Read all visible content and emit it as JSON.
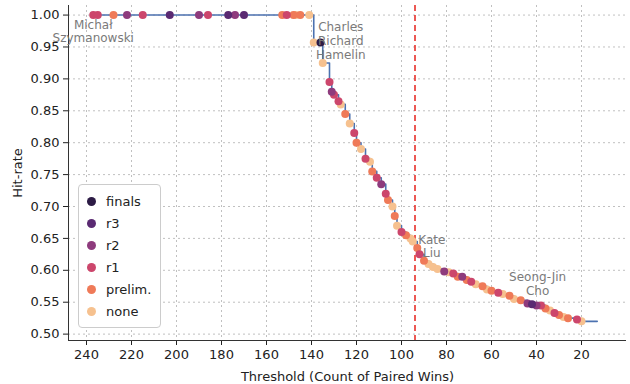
{
  "chart_data": {
    "type": "scatter",
    "x_label": "Threshold (Count of Paired Wins)",
    "y_label": "Hit-rate",
    "xlim": [
      248,
      0
    ],
    "xticks": [
      240,
      220,
      200,
      180,
      160,
      140,
      120,
      100,
      80,
      60,
      40,
      20
    ],
    "ylim": [
      0.49,
      1.015
    ],
    "yticks": [
      {
        "value": 0.5,
        "label": "0.50"
      },
      {
        "value": 0.55,
        "label": "0.55"
      },
      {
        "value": 0.6,
        "label": "0.60"
      },
      {
        "value": 0.65,
        "label": "0.65"
      },
      {
        "value": 0.7,
        "label": "0.70"
      },
      {
        "value": 0.75,
        "label": "0.75"
      },
      {
        "value": 0.8,
        "label": "0.80"
      },
      {
        "value": 0.85,
        "label": "0.85"
      },
      {
        "value": 0.9,
        "label": "0.90"
      },
      {
        "value": 0.95,
        "label": "0.95"
      },
      {
        "value": 1,
        "label": "1.00"
      }
    ],
    "grid": true,
    "legend": "lower left",
    "series": [
      {
        "name": "finals",
        "color": "#2c1b45",
        "marker": "circle",
        "x": [
          136
        ],
        "values": [
          0.957
        ]
      },
      {
        "name": "r3",
        "color": "#5a2a72",
        "marker": "circle",
        "x": [
          203,
          177,
          170,
          42
        ],
        "values": [
          1,
          1,
          1,
          0.547
        ]
      },
      {
        "name": "r2",
        "color": "#8e3b7d",
        "marker": "circle",
        "x": [
          222,
          190,
          174,
          131,
          109,
          81,
          73,
          44,
          40
        ],
        "values": [
          1,
          1,
          1,
          0.88,
          0.735,
          0.598,
          0.59,
          0.548,
          0.545
        ]
      },
      {
        "name": "r1",
        "color": "#cc466c",
        "marker": "circle",
        "x": [
          237,
          235,
          215,
          186,
          151,
          132,
          130,
          128,
          121,
          116,
          111,
          107,
          100,
          92,
          77,
          69,
          57,
          38,
          32,
          22
        ],
        "values": [
          1,
          1,
          1,
          1,
          1,
          0.895,
          0.875,
          0.865,
          0.815,
          0.775,
          0.745,
          0.72,
          0.66,
          0.625,
          0.595,
          0.582,
          0.565,
          0.545,
          0.533,
          0.523
        ]
      },
      {
        "name": "prelim.",
        "color": "#ef7a58",
        "marker": "circle",
        "x": [
          228,
          153,
          148,
          145,
          125,
          120,
          113,
          106,
          103,
          98,
          93,
          90,
          75,
          71,
          64,
          60,
          52,
          47,
          36,
          30,
          26
        ],
        "values": [
          1,
          1,
          1,
          1,
          0.845,
          0.8,
          0.755,
          0.71,
          0.685,
          0.655,
          0.635,
          0.615,
          0.59,
          0.585,
          0.575,
          0.568,
          0.56,
          0.553,
          0.54,
          0.53,
          0.525
        ]
      },
      {
        "name": "none",
        "color": "#f6c18f",
        "marker": "circle",
        "x": [
          147,
          141,
          139,
          135,
          127,
          123,
          118,
          114,
          104,
          102,
          96,
          95,
          88,
          86,
          84,
          79,
          67,
          62,
          55,
          50,
          34,
          28,
          20
        ],
        "values": [
          1,
          1,
          0.957,
          0.925,
          0.86,
          0.83,
          0.79,
          0.77,
          0.7,
          0.67,
          0.65,
          0.645,
          0.61,
          0.605,
          0.602,
          0.597,
          0.578,
          0.57,
          0.563,
          0.555,
          0.537,
          0.527,
          0.52
        ]
      }
    ],
    "line": {
      "type": "line",
      "color": "#4c72b0",
      "line_style": "step",
      "x": [
        237,
        139,
        136,
        135,
        132,
        131,
        130,
        128,
        127,
        125,
        123,
        121,
        120,
        118,
        116,
        114,
        113,
        111,
        109,
        107,
        106,
        104,
        103,
        102,
        100,
        98,
        96,
        95,
        93,
        92,
        90,
        88,
        86,
        84,
        81,
        79,
        77,
        75,
        73,
        71,
        69,
        67,
        64,
        62,
        60,
        57,
        55,
        52,
        50,
        47,
        44,
        42,
        40,
        38,
        36,
        34,
        32,
        30,
        28,
        26,
        22,
        20,
        13
      ],
      "values": [
        1,
        0.957,
        0.957,
        0.925,
        0.895,
        0.88,
        0.875,
        0.865,
        0.86,
        0.845,
        0.83,
        0.815,
        0.8,
        0.79,
        0.775,
        0.77,
        0.755,
        0.745,
        0.735,
        0.72,
        0.71,
        0.7,
        0.685,
        0.67,
        0.66,
        0.655,
        0.65,
        0.645,
        0.635,
        0.625,
        0.615,
        0.61,
        0.605,
        0.602,
        0.598,
        0.597,
        0.595,
        0.59,
        0.59,
        0.585,
        0.582,
        0.578,
        0.575,
        0.57,
        0.568,
        0.565,
        0.563,
        0.56,
        0.555,
        0.553,
        0.548,
        0.547,
        0.545,
        0.545,
        0.54,
        0.537,
        0.533,
        0.53,
        0.527,
        0.525,
        0.523,
        0.52,
        0.52
      ]
    },
    "reference_line": {
      "x": 94,
      "color": "#e8302a",
      "line_style": "dashed"
    },
    "annotations": [
      {
        "text": "Michał\nSzymanowski",
        "x": 237,
        "y": 0.975
      },
      {
        "text": "Charles\nRichard\nHamelin",
        "x": 127,
        "y": 0.96
      },
      {
        "text": "Kate\nLiu",
        "x": 86.5,
        "y": 0.638
      },
      {
        "text": "Seong-Jin\nCho",
        "x": 39.5,
        "y": 0.579
      }
    ]
  }
}
